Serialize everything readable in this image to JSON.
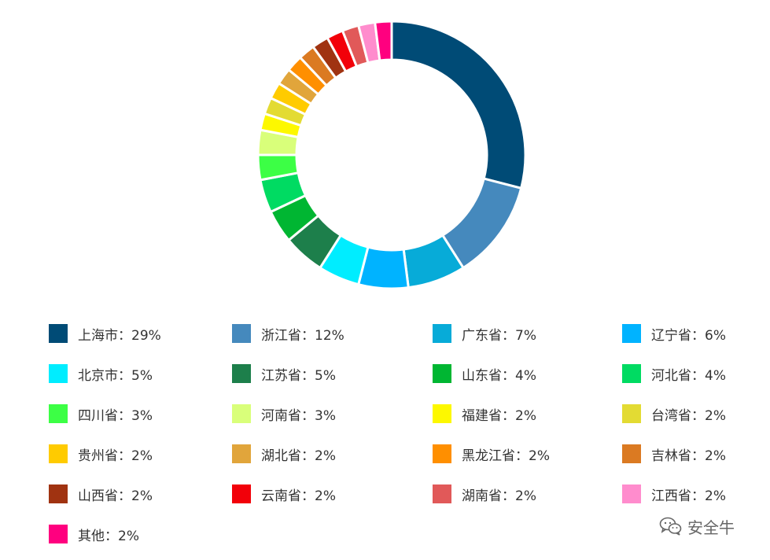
{
  "chart_data": {
    "type": "pie",
    "style": "donut",
    "legend_position": "bottom",
    "categories": [
      "上海市",
      "浙江省",
      "广东省",
      "辽宁省",
      "北京市",
      "江苏省",
      "山东省",
      "河北省",
      "四川省",
      "河南省",
      "福建省",
      "台湾省",
      "贵州省",
      "湖北省",
      "黑龙江省",
      "吉林省",
      "山西省",
      "云南省",
      "湖南省",
      "江西省",
      "其他"
    ],
    "values": [
      29,
      12,
      7,
      6,
      5,
      5,
      4,
      4,
      3,
      3,
      2,
      2,
      2,
      2,
      2,
      2,
      2,
      2,
      2,
      2,
      2
    ],
    "colors": [
      "#004b76",
      "#4589bd",
      "#07abd8",
      "#00b3ff",
      "#00edff",
      "#1d7f4b",
      "#00b632",
      "#00db62",
      "#3cff45",
      "#d9ff7a",
      "#fdf800",
      "#e3db33",
      "#ffcb00",
      "#e1a53b",
      "#ff8f00",
      "#db7a22",
      "#a03311",
      "#f20009",
      "#e15959",
      "#ff8ccd",
      "#ff007f"
    ],
    "legend_labels": [
      "上海市：29%",
      "浙江省：12%",
      "广东省：7%",
      "辽宁省：6%",
      "北京市：5%",
      "江苏省：5%",
      "山东省：4%",
      "河北省：4%",
      "四川省：3%",
      "河南省：3%",
      "福建省：2%",
      "台湾省：2%",
      "贵州省：2%",
      "湖北省：2%",
      "黑龙江省：2%",
      "吉林省：2%",
      "山西省：2%",
      "云南省：2%",
      "湖南省：2%",
      "江西省：2%",
      "其他：2%"
    ]
  },
  "watermark": {
    "text": "安全牛",
    "icon": "wechat-icon"
  }
}
